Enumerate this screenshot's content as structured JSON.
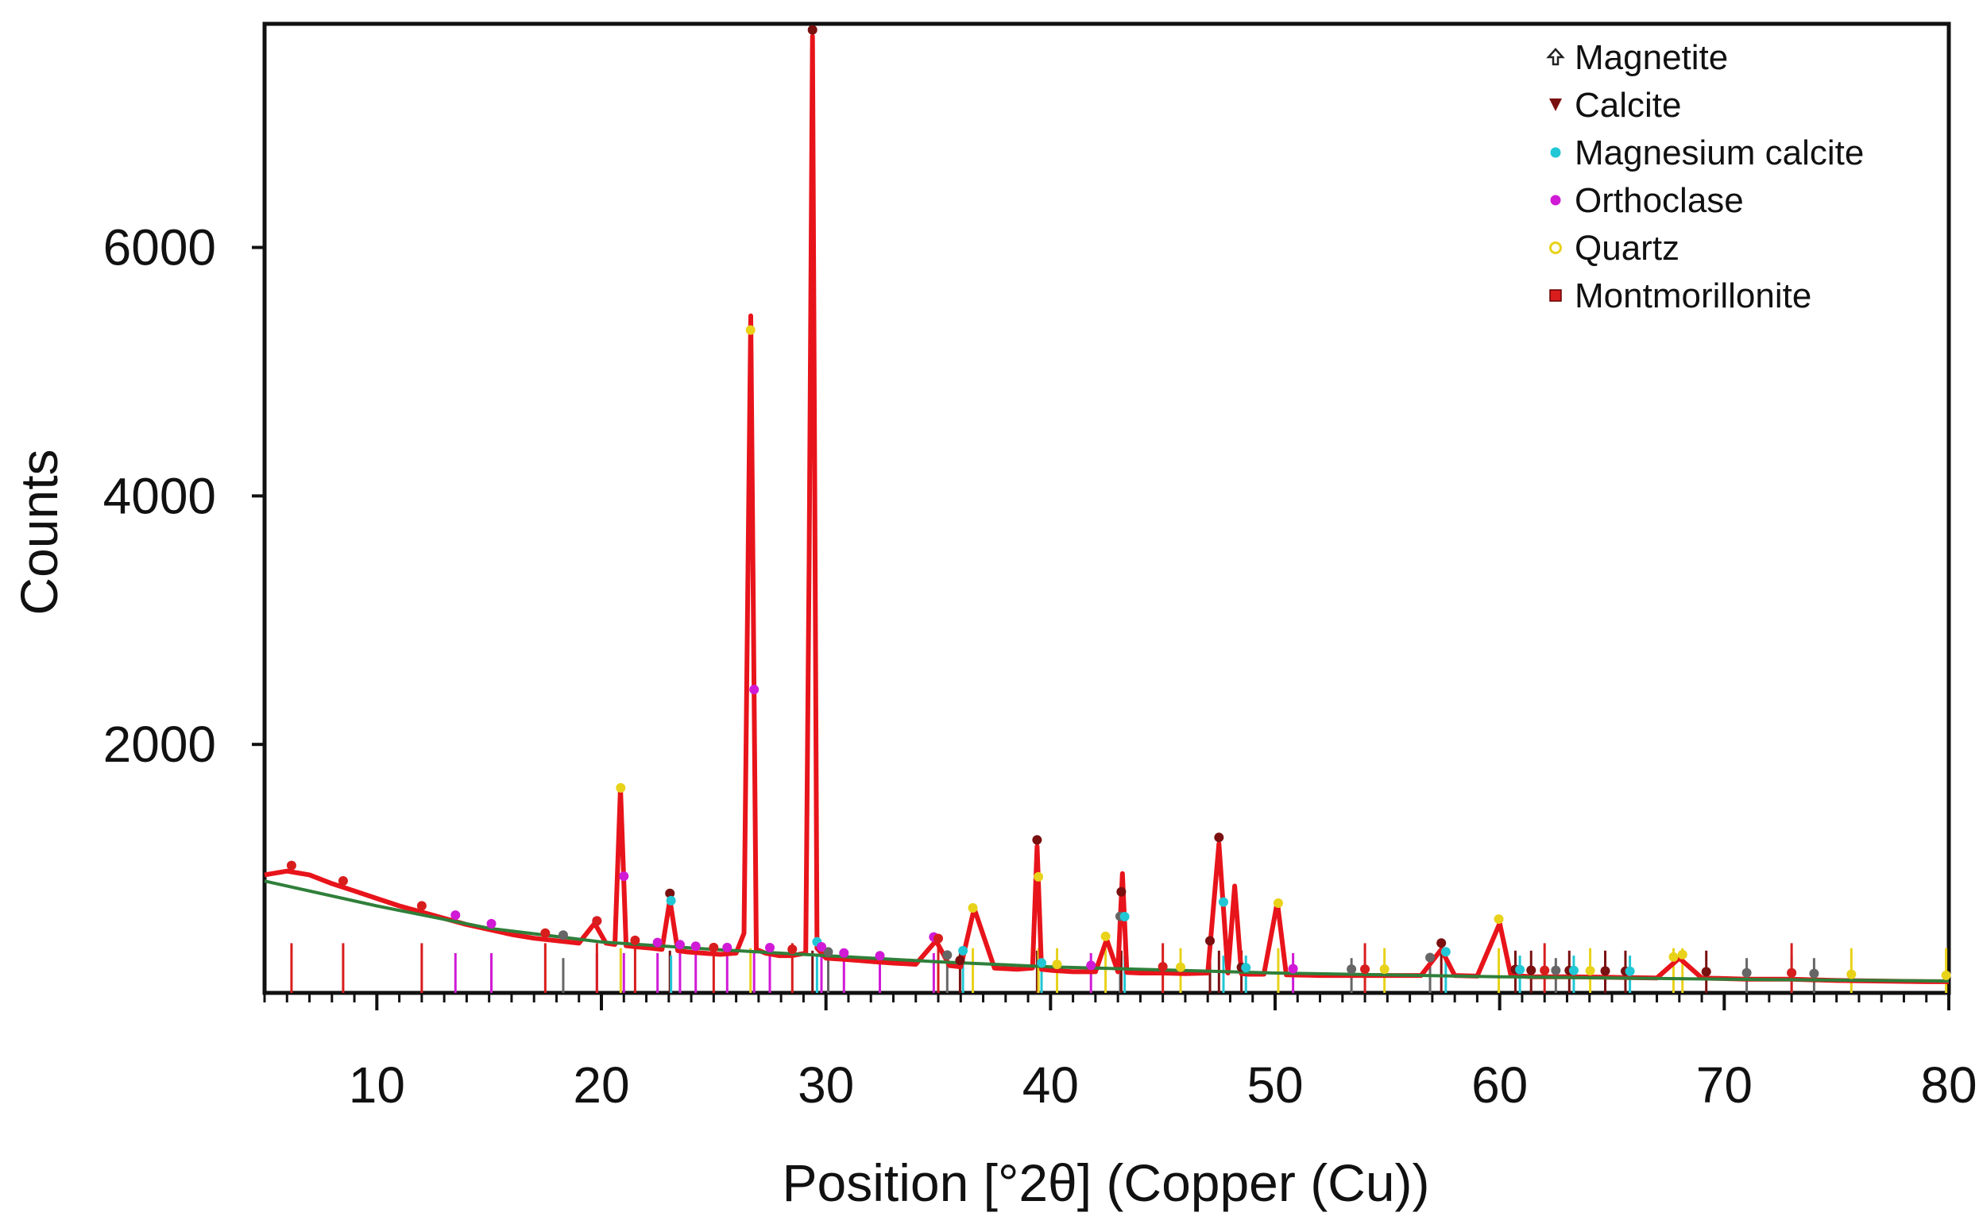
{
  "chart_data": {
    "type": "line",
    "title": "",
    "xlabel": "Position [°2θ] (Copper (Cu))",
    "ylabel": "Counts",
    "xlim": [
      5,
      80
    ],
    "ylim": [
      0,
      7800
    ],
    "x_ticks": [
      10,
      20,
      30,
      40,
      50,
      60,
      70,
      80
    ],
    "y_ticks": [
      2000,
      4000,
      6000
    ],
    "grid": false,
    "legend_position": "top-right",
    "colors": {
      "observed_pattern": "#e8141b",
      "fitted_profile": "#1a1a6e",
      "background": "#2f7f3a",
      "magnetite": "#666666",
      "calcite": "#7a1010",
      "magnesium_calcite": "#21c7d4",
      "orthoclase": "#d01ad6",
      "quartz": "#e8d21a",
      "montmorillonite": "#d81d1d"
    },
    "legend": [
      {
        "key": "magnetite",
        "label": "Magnetite",
        "marker": "arrow-up",
        "color": "#666666"
      },
      {
        "key": "calcite",
        "label": "Calcite",
        "marker": "triangle-down",
        "color": "#7a1010"
      },
      {
        "key": "magnesium_calcite",
        "label": "Magnesium calcite",
        "marker": "circle",
        "color": "#21c7d4"
      },
      {
        "key": "orthoclase",
        "label": "Orthoclase",
        "marker": "circle",
        "color": "#d01ad6"
      },
      {
        "key": "quartz",
        "label": "Quartz",
        "marker": "circle-open",
        "color": "#e8d21a"
      },
      {
        "key": "montmorillonite",
        "label": "Montmorillonite",
        "marker": "square",
        "color": "#d81d1d"
      }
    ],
    "series": [
      {
        "key": "observed",
        "x": [
          5,
          6,
          7,
          8,
          9,
          10,
          11,
          12,
          13,
          14,
          15,
          16,
          17,
          18,
          19,
          19.7,
          20.2,
          20.6,
          20.85,
          21.1,
          21.6,
          22.2,
          22.7,
          23.05,
          23.4,
          23.8,
          24.5,
          25.3,
          26.0,
          26.35,
          26.65,
          26.9,
          27.3,
          27.9,
          28.5,
          29.1,
          29.25,
          29.4,
          29.6,
          30.0,
          30.8,
          31.5,
          32.2,
          33.0,
          34.0,
          34.9,
          35.5,
          36.0,
          36.6,
          37.5,
          38.5,
          39.2,
          39.4,
          39.6,
          40.1,
          41.0,
          42.0,
          42.5,
          43.0,
          43.2,
          43.4,
          44.0,
          45.0,
          46.0,
          47.0,
          47.5,
          47.9,
          48.2,
          48.5,
          48.8,
          49.5,
          50.1,
          50.5,
          52.0,
          54.0,
          55.0,
          56.5,
          57.4,
          58.0,
          59.0,
          60.0,
          60.5,
          61.5,
          63.0,
          65.0,
          67.0,
          68.0,
          69.0,
          71.0,
          73.0,
          75.0,
          77.0,
          79.0,
          80.0
        ],
        "y": [
          950,
          980,
          950,
          880,
          820,
          760,
          700,
          650,
          600,
          550,
          510,
          470,
          440,
          420,
          400,
          560,
          400,
          390,
          1650,
          380,
          370,
          360,
          350,
          750,
          340,
          330,
          320,
          310,
          320,
          480,
          5450,
          350,
          320,
          300,
          300,
          320,
          3500,
          7700,
          360,
          280,
          270,
          260,
          250,
          240,
          230,
          420,
          220,
          210,
          680,
          200,
          190,
          200,
          1180,
          190,
          180,
          170,
          170,
          430,
          170,
          960,
          165,
          160,
          160,
          155,
          160,
          1200,
          160,
          860,
          155,
          150,
          150,
          730,
          145,
          140,
          140,
          140,
          140,
          350,
          140,
          135,
          560,
          140,
          130,
          130,
          125,
          120,
          280,
          120,
          110,
          110,
          100,
          95,
          90,
          90
        ]
      },
      {
        "key": "background",
        "x": [
          5,
          10,
          15,
          20,
          25,
          30,
          35,
          40,
          50,
          60,
          70,
          80
        ],
        "y": [
          900,
          700,
          520,
          410,
          350,
          300,
          250,
          210,
          160,
          130,
          110,
          95
        ]
      }
    ],
    "reference_peaks": {
      "magnetite": [
        18.3,
        30.1,
        35.4,
        43.1,
        53.4,
        56.9,
        62.5,
        71.0,
        74.0
      ],
      "calcite": [
        23.05,
        29.4,
        35.97,
        39.4,
        43.15,
        47.1,
        47.5,
        48.5,
        57.4,
        60.7,
        61.4,
        63.1,
        64.7,
        65.6,
        69.2
      ],
      "magnesium_calcite": [
        23.1,
        29.6,
        36.1,
        39.6,
        43.3,
        47.7,
        48.7,
        57.6,
        60.9,
        63.3,
        65.8,
        73.0
      ],
      "orthoclase": [
        13.5,
        15.1,
        19.8,
        21.0,
        22.5,
        23.5,
        24.2,
        25.6,
        26.8,
        27.5,
        29.8,
        30.8,
        32.4,
        34.8,
        41.8,
        50.8
      ],
      "quartz": [
        20.86,
        26.64,
        36.54,
        39.46,
        40.29,
        42.45,
        45.79,
        50.14,
        54.87,
        59.96,
        64.03,
        67.74,
        68.14,
        75.66,
        79.88
      ],
      "montmorillonite": [
        6.2,
        8.5,
        12.0,
        17.5,
        19.8,
        21.5,
        25.0,
        28.5,
        35.0,
        45.0,
        54.0,
        62.0,
        73.0
      ]
    }
  }
}
